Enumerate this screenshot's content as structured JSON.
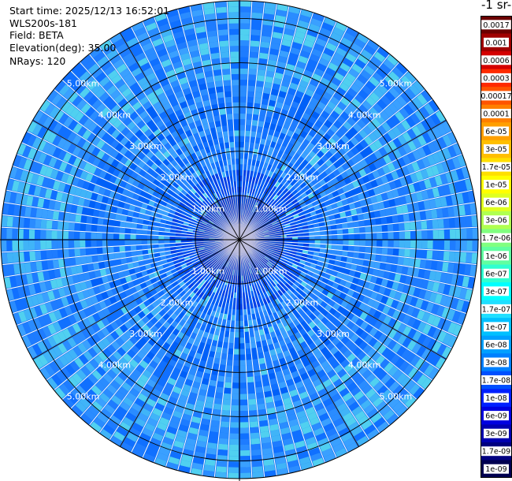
{
  "info": {
    "start_time": "Start time: 2025/12/13 16:52:01",
    "instrument": "WLS200s-181",
    "field": "Field: BETA",
    "elevation": "Elevation(deg): 35.00",
    "nrays": "NRays: 120"
  },
  "chart_data": {
    "type": "heatmap",
    "projection": "polar-ppi",
    "title": "",
    "n_rays": 120,
    "max_range_km": 5.4,
    "range_rings_km": [
      1,
      2,
      3,
      4,
      5
    ],
    "ring_labels": [
      "1.00km",
      "2.00km",
      "3.00km",
      "4.00km",
      "5.00km"
    ],
    "colorbar": {
      "title": "-1 sr-",
      "ticks": [
        "0.0017",
        "0.001",
        "0.0006",
        "0.0003",
        "0.00017",
        "0.0001",
        "6e-05",
        "3e-05",
        "1.7e-05",
        "1e-05",
        "6e-06",
        "3e-06",
        "1.7e-06",
        "1e-06",
        "6e-07",
        "3e-07",
        "1.7e-07",
        "1e-07",
        "6e-08",
        "3e-08",
        "1.7e-08",
        "1e-08",
        "6e-09",
        "3e-09",
        "1.7e-09",
        "1e-09"
      ],
      "colors": [
        "#6b0000",
        "#a00000",
        "#d40000",
        "#ff2a00",
        "#ff5400",
        "#ff7f00",
        "#ff9f00",
        "#ffbf00",
        "#ffdf00",
        "#ffff00",
        "#dfff20",
        "#b0ff50",
        "#80ff80",
        "#60ffa0",
        "#30ffd0",
        "#00ffff",
        "#20dfff",
        "#00c0ff",
        "#00a0ff",
        "#0080ff",
        "#0050ff",
        "#0020ff",
        "#0000e0",
        "#0000b0",
        "#000080",
        "#000050"
      ]
    }
  }
}
